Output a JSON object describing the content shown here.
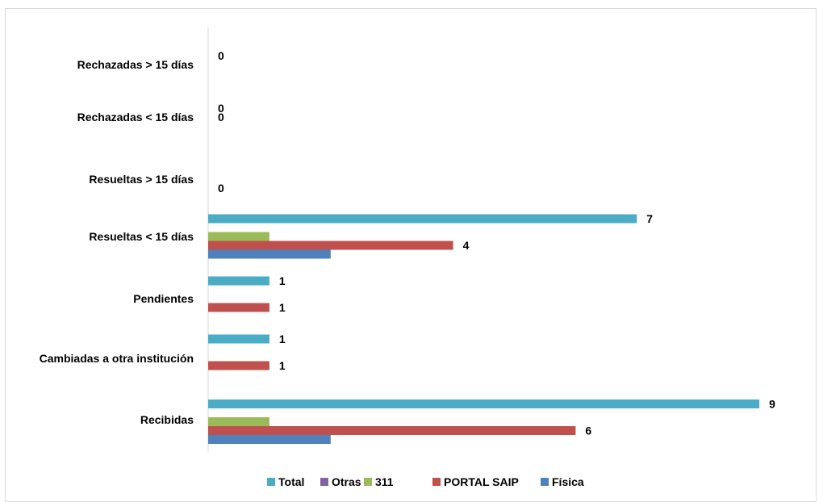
{
  "chart_data": {
    "type": "bar",
    "orientation": "horizontal",
    "title": "",
    "xlabel": "",
    "ylabel": "",
    "xlim": [
      0,
      9
    ],
    "grid": false,
    "legend_position": "bottom",
    "categories": [
      "Recibidas",
      "Cambiadas a otra institución",
      "Pendientes",
      "Resueltas < 15 días",
      "Resueltas > 15 días",
      "Rechazadas  < 15 días",
      "Rechazadas  > 15 días"
    ],
    "series": [
      {
        "name": "Física",
        "color": "#4f81bd",
        "values": [
          2,
          null,
          null,
          2,
          null,
          null,
          null
        ],
        "labels": [
          null,
          null,
          null,
          null,
          null,
          null,
          null
        ]
      },
      {
        "name": "PORTAL SAIP",
        "color": "#c0504d",
        "values": [
          6,
          1,
          1,
          4,
          0,
          null,
          null
        ],
        "labels": [
          "6",
          "1",
          "1",
          "4",
          "0",
          null,
          null
        ]
      },
      {
        "name": "311",
        "color": "#9bbb59",
        "values": [
          1,
          null,
          null,
          1,
          null,
          0,
          null
        ],
        "labels": [
          null,
          null,
          null,
          null,
          null,
          "0",
          null
        ]
      },
      {
        "name": "Otras",
        "color": "#8064a2",
        "values": [
          null,
          null,
          null,
          null,
          null,
          0,
          0
        ],
        "labels": [
          null,
          null,
          null,
          null,
          null,
          "0",
          "0"
        ]
      },
      {
        "name": "Total",
        "color": "#4bacc6",
        "values": [
          9,
          1,
          1,
          7,
          null,
          null,
          null
        ],
        "labels": [
          "9",
          "1",
          "1",
          "7",
          null,
          null,
          null
        ]
      }
    ],
    "legend_order": [
      "Total",
      "Otras",
      "311",
      "PORTAL SAIP",
      "Física"
    ]
  }
}
